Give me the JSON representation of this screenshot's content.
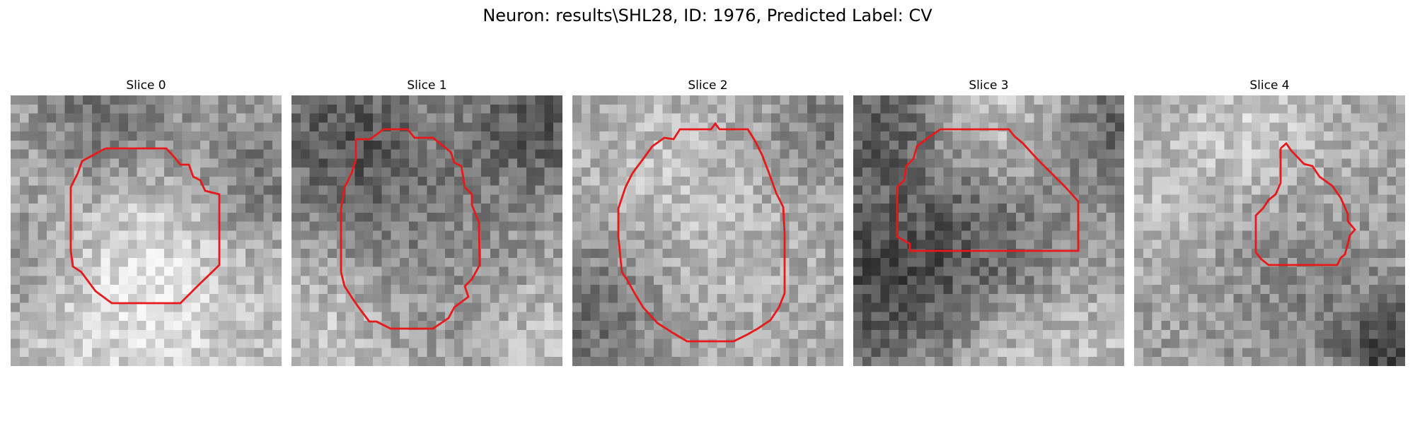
{
  "figure": {
    "title": "Neuron: results\\SHL28, ID: 1976, Predicted Label: CV"
  },
  "panels": [
    {
      "title": "Slice 0"
    },
    {
      "title": "Slice 1"
    },
    {
      "title": "Slice 2"
    },
    {
      "title": "Slice 3"
    },
    {
      "title": "Slice 4"
    }
  ],
  "style": {
    "contour_color": "#e8191b",
    "colormap": "gray"
  }
}
